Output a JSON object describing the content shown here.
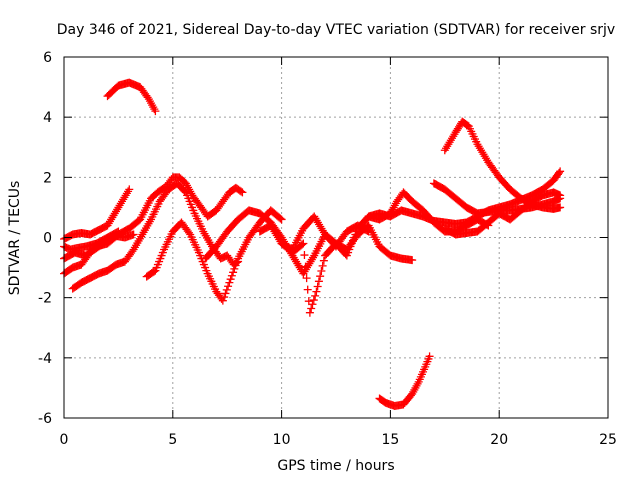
{
  "chart_data": {
    "type": "scatter",
    "title": "Day 346 of 2021, Sidereal Day-to-day VTEC variation (SDTVAR) for receiver srjv",
    "xlabel": "GPS time / hours",
    "ylabel": "SDTVAR / TECUs",
    "xlim": [
      0,
      25
    ],
    "ylim": [
      -6,
      6
    ],
    "xticks": [
      0,
      5,
      10,
      15,
      20,
      25
    ],
    "yticks": [
      -6,
      -4,
      -2,
      0,
      2,
      4,
      6
    ],
    "grid": true,
    "marker": "+",
    "color": "#ff0000",
    "series": [
      {
        "name": "s1",
        "x": [
          2.0,
          2.5,
          3.0,
          3.5,
          3.9,
          4.2
        ],
        "y": [
          4.7,
          5.05,
          5.15,
          5.0,
          4.6,
          4.2
        ]
      },
      {
        "name": "s2",
        "x": [
          0.0,
          0.4,
          0.8,
          1.2,
          1.6,
          2.0,
          2.5,
          3.0
        ],
        "y": [
          -0.05,
          0.1,
          0.15,
          0.1,
          0.25,
          0.4,
          1.0,
          1.6
        ]
      },
      {
        "name": "s3",
        "x": [
          0.0,
          0.5,
          1.0,
          1.5,
          2.0,
          2.5,
          3.0,
          3.5,
          4.0,
          4.3,
          4.7,
          5.0,
          5.3,
          5.6,
          5.9,
          6.3,
          6.6,
          7.0,
          7.3,
          7.6,
          7.9,
          8.2
        ],
        "y": [
          -0.7,
          -0.5,
          -0.6,
          -0.3,
          -0.2,
          0.1,
          0.3,
          0.6,
          1.3,
          1.5,
          1.7,
          2.0,
          2.0,
          1.8,
          1.4,
          1.0,
          0.7,
          0.9,
          1.2,
          1.5,
          1.65,
          1.5
        ]
      },
      {
        "name": "s4",
        "x": [
          0.0,
          0.4,
          0.8,
          1.2,
          1.6,
          2.0,
          2.4,
          2.8,
          3.2
        ],
        "y": [
          -1.2,
          -1.0,
          -0.9,
          -0.5,
          -0.3,
          -0.1,
          0.05,
          0.0,
          0.1
        ]
      },
      {
        "name": "s5",
        "x": [
          0.0,
          0.3,
          0.6,
          1.0,
          1.5,
          2.0,
          2.5
        ],
        "y": [
          -0.3,
          -0.4,
          -0.35,
          -0.3,
          -0.2,
          0.0,
          0.2
        ]
      },
      {
        "name": "s6",
        "x": [
          0.4,
          0.8,
          1.2,
          1.6,
          2.0,
          2.4,
          2.8,
          3.2,
          3.6,
          4.0,
          4.4,
          4.8,
          5.2,
          5.6,
          6.0,
          6.4,
          6.8,
          7.2,
          7.5,
          7.8,
          8.0
        ],
        "y": [
          -1.7,
          -1.5,
          -1.35,
          -1.2,
          -1.1,
          -0.9,
          -0.8,
          -0.4,
          0.1,
          0.6,
          1.2,
          1.6,
          1.8,
          1.5,
          0.8,
          0.2,
          -0.3,
          -0.7,
          -0.6,
          -0.9,
          -0.8
        ]
      },
      {
        "name": "s7",
        "x": [
          3.8,
          4.2,
          4.6,
          5.0,
          5.4,
          5.8,
          6.2,
          6.6,
          7.0,
          7.3,
          7.6,
          8.0,
          8.5,
          9.0,
          9.5,
          10.0
        ],
        "y": [
          -1.3,
          -1.1,
          -0.4,
          0.2,
          0.5,
          0.1,
          -0.5,
          -1.2,
          -1.8,
          -2.1,
          -1.5,
          -0.7,
          0.0,
          0.5,
          0.9,
          0.6
        ]
      },
      {
        "name": "s8",
        "x": [
          6.5,
          7.0,
          7.5,
          8.0,
          8.5,
          9.0,
          9.5,
          10.0,
          10.5,
          11.0,
          11.5,
          12.0,
          12.5,
          13.0,
          13.5,
          14.0
        ],
        "y": [
          -0.7,
          -0.3,
          0.2,
          0.6,
          0.9,
          0.8,
          0.5,
          0.0,
          -0.6,
          -1.2,
          -0.6,
          0.1,
          -0.3,
          0.2,
          0.4,
          0.2
        ]
      },
      {
        "name": "s9",
        "x": [
          9.0,
          9.5,
          10.0,
          10.5,
          11.0,
          11.3,
          11.6,
          12.0,
          12.5,
          13.0,
          13.5,
          14.0,
          14.5,
          15.0,
          15.5,
          16.0
        ],
        "y": [
          0.2,
          0.4,
          -0.2,
          -0.5,
          -0.2,
          -2.5,
          -1.8,
          -0.6,
          -0.2,
          -0.4,
          0.1,
          0.4,
          -0.3,
          -0.6,
          -0.7,
          -0.75
        ]
      },
      {
        "name": "s10",
        "x": [
          10.0,
          10.5,
          11.0,
          11.5,
          12.0,
          12.5,
          13.0,
          13.5,
          14.0,
          14.5,
          15.0,
          15.3,
          15.6,
          16.0,
          16.5,
          17.0,
          17.5,
          18.0,
          18.5,
          19.0,
          19.5
        ],
        "y": [
          -0.2,
          -0.4,
          0.3,
          0.7,
          0.1,
          -0.2,
          -0.6,
          0.3,
          0.7,
          0.6,
          0.8,
          1.2,
          1.5,
          1.2,
          0.9,
          0.5,
          0.2,
          0.2,
          0.4,
          0.6,
          0.4
        ]
      },
      {
        "name": "s11",
        "x": [
          14.0,
          14.5,
          15.0,
          15.5,
          16.0,
          16.5,
          17.0,
          17.5,
          18.0,
          18.5,
          19.0,
          19.5,
          20.0,
          20.5,
          21.0,
          21.5,
          22.0,
          22.5,
          22.8
        ],
        "y": [
          0.7,
          0.8,
          0.7,
          0.9,
          0.8,
          0.7,
          0.55,
          0.5,
          0.45,
          0.5,
          0.7,
          0.9,
          1.0,
          1.1,
          1.25,
          1.4,
          1.6,
          1.9,
          2.2
        ]
      },
      {
        "name": "s12",
        "x": [
          17.0,
          17.5,
          18.0,
          18.5,
          19.0,
          19.5,
          20.0,
          20.5,
          21.0,
          21.5,
          22.0,
          22.5,
          22.8
        ],
        "y": [
          1.8,
          1.6,
          1.3,
          1.0,
          0.8,
          0.85,
          0.9,
          0.9,
          0.95,
          1.0,
          1.1,
          1.2,
          1.3
        ]
      },
      {
        "name": "s13",
        "x": [
          17.5,
          18.0,
          18.3,
          18.6,
          19.0,
          19.5,
          20.0,
          20.5,
          21.0,
          21.5,
          22.0,
          22.5,
          22.8
        ],
        "y": [
          2.9,
          3.5,
          3.85,
          3.7,
          3.1,
          2.5,
          2.0,
          1.6,
          1.3,
          1.1,
          1.0,
          0.95,
          1.0
        ]
      },
      {
        "name": "s14",
        "x": [
          17.5,
          18.0,
          18.5,
          19.0,
          19.5,
          20.0,
          20.5,
          21.0,
          21.5,
          22.0,
          22.5,
          22.8
        ],
        "y": [
          0.3,
          0.1,
          0.15,
          0.2,
          0.5,
          0.8,
          0.6,
          0.9,
          1.2,
          1.4,
          1.5,
          1.4
        ]
      },
      {
        "name": "s15",
        "x": [
          14.5,
          14.8,
          15.2,
          15.6,
          16.0,
          16.3,
          16.6,
          16.8
        ],
        "y": [
          -5.35,
          -5.5,
          -5.6,
          -5.55,
          -5.2,
          -4.8,
          -4.3,
          -3.95
        ]
      }
    ]
  }
}
